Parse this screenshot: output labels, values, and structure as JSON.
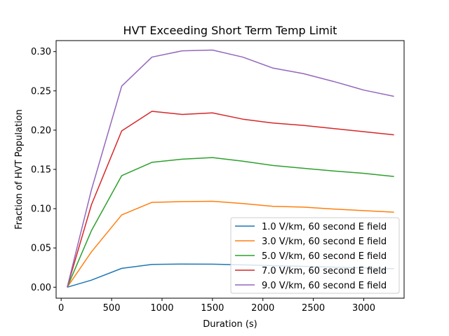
{
  "chart_data": {
    "type": "line",
    "title": "HVT Exceeding Short Term Temp Limit",
    "xlabel": "Duration (s)",
    "ylabel": "Fraction of HVT Population",
    "xlim": [
      -50,
      3400
    ],
    "ylim": [
      -0.014,
      0.314
    ],
    "xticks": [
      0,
      500,
      1000,
      1500,
      2000,
      2500,
      3000
    ],
    "yticks": [
      0.0,
      0.05,
      0.1,
      0.15,
      0.2,
      0.25,
      0.3
    ],
    "ytick_labels": [
      "0.00",
      "0.05",
      "0.10",
      "0.15",
      "0.20",
      "0.25",
      "0.30"
    ],
    "grid": false,
    "legend_position": "lower right",
    "x": [
      60,
      300,
      600,
      900,
      1200,
      1500,
      1800,
      2100,
      2400,
      2700,
      3000,
      3300
    ],
    "series": [
      {
        "name": "1.0 V/km, 60 second E field",
        "color": "#1f77b4",
        "values": [
          0.0,
          0.009,
          0.024,
          0.029,
          0.0295,
          0.0293,
          0.0285,
          0.0275,
          0.0265,
          0.0255,
          0.0245,
          0.0235
        ]
      },
      {
        "name": "3.0 V/km, 60 second E field",
        "color": "#ff7f0e",
        "values": [
          0.0,
          0.045,
          0.092,
          0.108,
          0.109,
          0.1095,
          0.1065,
          0.103,
          0.102,
          0.0995,
          0.0975,
          0.0955
        ]
      },
      {
        "name": "5.0 V/km, 60 second E field",
        "color": "#2ca02c",
        "values": [
          0.0,
          0.072,
          0.142,
          0.159,
          0.163,
          0.165,
          0.1605,
          0.155,
          0.1515,
          0.148,
          0.145,
          0.141
        ]
      },
      {
        "name": "7.0 V/km, 60 second E field",
        "color": "#d62728",
        "values": [
          0.0,
          0.105,
          0.199,
          0.224,
          0.22,
          0.222,
          0.214,
          0.209,
          0.206,
          0.202,
          0.198,
          0.194
        ]
      },
      {
        "name": "9.0 V/km, 60 second E field",
        "color": "#9467bd",
        "values": [
          0.0,
          0.124,
          0.256,
          0.293,
          0.301,
          0.302,
          0.293,
          0.279,
          0.272,
          0.262,
          0.251,
          0.243
        ]
      }
    ]
  }
}
